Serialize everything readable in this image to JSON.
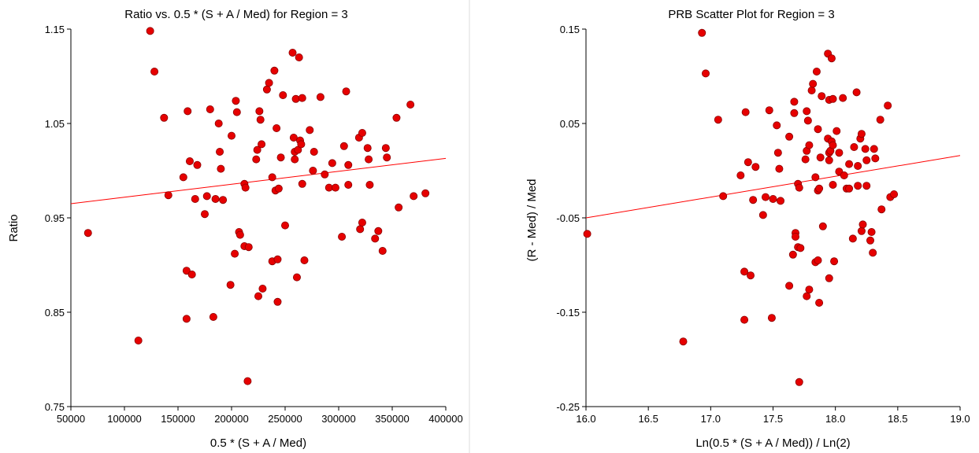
{
  "chart_data": [
    {
      "type": "scatter",
      "title": "Ratio vs. 0.5 * (S + A / Med) for Region = 3",
      "xlabel": "0.5 * (S + A / Med)",
      "ylabel": "Ratio",
      "xlim": [
        50000,
        400000
      ],
      "ylim": [
        0.75,
        1.15
      ],
      "xticks": [
        "50000",
        "100000",
        "150000",
        "200000",
        "250000",
        "300000",
        "350000",
        "400000"
      ],
      "yticks": [
        "0.75",
        "0.85",
        "0.95",
        "1.05",
        "1.15"
      ],
      "xtick_values": [
        50000,
        100000,
        150000,
        200000,
        250000,
        300000,
        350000,
        400000
      ],
      "ytick_values": [
        0.75,
        0.85,
        0.95,
        1.05,
        1.15
      ],
      "marker_color": "#e60000",
      "line_color": "#ff0000",
      "fit_line": {
        "x": [
          50000,
          400000
        ],
        "y": [
          0.965,
          1.013
        ]
      },
      "points": [
        [
          66000,
          0.934
        ],
        [
          113000,
          0.82
        ],
        [
          124000,
          1.148
        ],
        [
          128000,
          1.105
        ],
        [
          137000,
          1.056
        ],
        [
          141000,
          0.974
        ],
        [
          155000,
          0.993
        ],
        [
          158000,
          0.894
        ],
        [
          158000,
          0.843
        ],
        [
          159000,
          1.063
        ],
        [
          161000,
          1.01
        ],
        [
          163000,
          0.89
        ],
        [
          166000,
          0.97
        ],
        [
          168000,
          1.006
        ],
        [
          175000,
          0.954
        ],
        [
          177000,
          0.973
        ],
        [
          180000,
          1.065
        ],
        [
          183000,
          0.845
        ],
        [
          185000,
          0.97
        ],
        [
          188000,
          1.05
        ],
        [
          189000,
          1.02
        ],
        [
          190000,
          1.002
        ],
        [
          192000,
          0.969
        ],
        [
          199000,
          0.879
        ],
        [
          200000,
          1.037
        ],
        [
          203000,
          0.912
        ],
        [
          204000,
          1.074
        ],
        [
          205000,
          1.062
        ],
        [
          207000,
          0.935
        ],
        [
          208000,
          0.932
        ],
        [
          212000,
          0.92
        ],
        [
          212000,
          0.986
        ],
        [
          213000,
          0.982
        ],
        [
          215000,
          0.777
        ],
        [
          216000,
          0.919
        ],
        [
          223000,
          1.012
        ],
        [
          224000,
          1.022
        ],
        [
          225000,
          0.867
        ],
        [
          226000,
          1.063
        ],
        [
          227000,
          1.054
        ],
        [
          228000,
          1.028
        ],
        [
          229000,
          0.875
        ],
        [
          233000,
          1.086
        ],
        [
          235000,
          1.093
        ],
        [
          238000,
          0.993
        ],
        [
          238000,
          0.904
        ],
        [
          240000,
          1.106
        ],
        [
          241000,
          0.979
        ],
        [
          242000,
          1.045
        ],
        [
          243000,
          0.906
        ],
        [
          243000,
          0.861
        ],
        [
          244000,
          0.981
        ],
        [
          246000,
          1.014
        ],
        [
          248000,
          1.08
        ],
        [
          250000,
          0.942
        ],
        [
          257000,
          1.125
        ],
        [
          258000,
          1.035
        ],
        [
          259000,
          1.012
        ],
        [
          259000,
          1.02
        ],
        [
          260000,
          1.076
        ],
        [
          261000,
          0.887
        ],
        [
          262000,
          1.022
        ],
        [
          263000,
          1.12
        ],
        [
          264000,
          1.032
        ],
        [
          265000,
          1.028
        ],
        [
          266000,
          0.986
        ],
        [
          266000,
          1.077
        ],
        [
          268000,
          0.905
        ],
        [
          273000,
          1.043
        ],
        [
          276000,
          1.0
        ],
        [
          277000,
          1.02
        ],
        [
          283000,
          1.078
        ],
        [
          287000,
          0.996
        ],
        [
          291000,
          0.982
        ],
        [
          294000,
          1.008
        ],
        [
          297000,
          0.982
        ],
        [
          303000,
          0.93
        ],
        [
          305000,
          1.026
        ],
        [
          307000,
          1.084
        ],
        [
          309000,
          1.006
        ],
        [
          309000,
          0.985
        ],
        [
          319000,
          1.035
        ],
        [
          320000,
          0.938
        ],
        [
          322000,
          1.04
        ],
        [
          322000,
          0.945
        ],
        [
          327000,
          1.024
        ],
        [
          328000,
          1.012
        ],
        [
          329000,
          0.985
        ],
        [
          334000,
          0.928
        ],
        [
          337000,
          0.936
        ],
        [
          341000,
          0.915
        ],
        [
          344000,
          1.024
        ],
        [
          345000,
          1.014
        ],
        [
          354000,
          1.056
        ],
        [
          356000,
          0.961
        ],
        [
          367000,
          1.07
        ],
        [
          370000,
          0.973
        ],
        [
          381000,
          0.976
        ]
      ]
    },
    {
      "type": "scatter",
      "title": "PRB Scatter Plot for Region = 3",
      "xlabel": "Ln(0.5 * (S + A / Med)) / Ln(2)",
      "ylabel": "(R - Med) / Med",
      "xlim": [
        16.0,
        19.0
      ],
      "ylim": [
        -0.25,
        0.15
      ],
      "xticks": [
        "16.0",
        "16.5",
        "17.0",
        "17.5",
        "18.0",
        "18.5",
        "19.0"
      ],
      "yticks": [
        "-0.25",
        "-0.15",
        "-0.05",
        "0.05",
        "0.15"
      ],
      "xtick_values": [
        16.0,
        16.5,
        17.0,
        17.5,
        18.0,
        18.5,
        19.0
      ],
      "ytick_values": [
        -0.25,
        -0.15,
        -0.05,
        0.05,
        0.15
      ],
      "marker_color": "#e60000",
      "line_color": "#ff0000",
      "fit_line": {
        "x": [
          16.0,
          19.0
        ],
        "y": [
          -0.05,
          0.016
        ]
      },
      "points": [
        [
          16.01,
          -0.067
        ],
        [
          16.78,
          -0.181
        ],
        [
          16.93,
          0.146
        ],
        [
          16.96,
          0.103
        ],
        [
          17.06,
          0.054
        ],
        [
          17.1,
          -0.027
        ],
        [
          17.24,
          -0.005
        ],
        [
          17.27,
          -0.107
        ],
        [
          17.27,
          -0.158
        ],
        [
          17.28,
          0.062
        ],
        [
          17.3,
          0.009
        ],
        [
          17.32,
          -0.111
        ],
        [
          17.34,
          -0.031
        ],
        [
          17.36,
          0.004
        ],
        [
          17.42,
          -0.047
        ],
        [
          17.44,
          -0.028
        ],
        [
          17.47,
          0.064
        ],
        [
          17.49,
          -0.156
        ],
        [
          17.5,
          -0.03
        ],
        [
          17.53,
          0.048
        ],
        [
          17.54,
          0.019
        ],
        [
          17.55,
          0.002
        ],
        [
          17.56,
          -0.032
        ],
        [
          17.63,
          -0.122
        ],
        [
          17.63,
          0.036
        ],
        [
          17.66,
          -0.089
        ],
        [
          17.67,
          0.073
        ],
        [
          17.67,
          0.061
        ],
        [
          17.68,
          -0.066
        ],
        [
          17.68,
          -0.07
        ],
        [
          17.7,
          -0.081
        ],
        [
          17.7,
          -0.014
        ],
        [
          17.71,
          -0.018
        ],
        [
          17.71,
          -0.224
        ],
        [
          17.72,
          -0.082
        ],
        [
          17.76,
          0.012
        ],
        [
          17.77,
          0.021
        ],
        [
          17.77,
          -0.133
        ],
        [
          17.77,
          0.063
        ],
        [
          17.78,
          0.053
        ],
        [
          17.79,
          0.027
        ],
        [
          17.79,
          -0.126
        ],
        [
          17.81,
          0.085
        ],
        [
          17.82,
          0.092
        ],
        [
          17.84,
          -0.007
        ],
        [
          17.84,
          -0.097
        ],
        [
          17.85,
          0.105
        ],
        [
          17.86,
          -0.021
        ],
        [
          17.86,
          0.044
        ],
        [
          17.86,
          -0.095
        ],
        [
          17.87,
          -0.14
        ],
        [
          17.87,
          -0.019
        ],
        [
          17.88,
          0.014
        ],
        [
          17.89,
          0.079
        ],
        [
          17.9,
          -0.059
        ],
        [
          17.94,
          0.124
        ],
        [
          17.94,
          0.034
        ],
        [
          17.95,
          0.011
        ],
        [
          17.95,
          0.019
        ],
        [
          17.95,
          0.075
        ],
        [
          17.95,
          -0.114
        ],
        [
          17.96,
          0.021
        ],
        [
          17.97,
          0.119
        ],
        [
          17.97,
          0.031
        ],
        [
          17.98,
          0.027
        ],
        [
          17.98,
          -0.015
        ],
        [
          17.98,
          0.076
        ],
        [
          17.99,
          -0.096
        ],
        [
          18.01,
          0.042
        ],
        [
          18.03,
          -0.001
        ],
        [
          18.03,
          0.019
        ],
        [
          18.06,
          0.077
        ],
        [
          18.07,
          -0.005
        ],
        [
          18.09,
          -0.019
        ],
        [
          18.11,
          0.007
        ],
        [
          18.11,
          -0.019
        ],
        [
          18.14,
          -0.072
        ],
        [
          18.15,
          0.025
        ],
        [
          18.17,
          0.083
        ],
        [
          18.18,
          0.005
        ],
        [
          18.18,
          -0.016
        ],
        [
          18.2,
          0.034
        ],
        [
          18.21,
          -0.064
        ],
        [
          18.21,
          0.039
        ],
        [
          18.22,
          -0.057
        ],
        [
          18.24,
          0.023
        ],
        [
          18.25,
          0.011
        ],
        [
          18.25,
          -0.016
        ],
        [
          18.28,
          -0.074
        ],
        [
          18.29,
          -0.065
        ],
        [
          18.3,
          -0.087
        ],
        [
          18.31,
          0.023
        ],
        [
          18.32,
          0.013
        ],
        [
          18.36,
          0.054
        ],
        [
          18.37,
          -0.041
        ],
        [
          18.42,
          0.069
        ],
        [
          18.44,
          -0.028
        ],
        [
          18.47,
          -0.025
        ]
      ]
    }
  ]
}
